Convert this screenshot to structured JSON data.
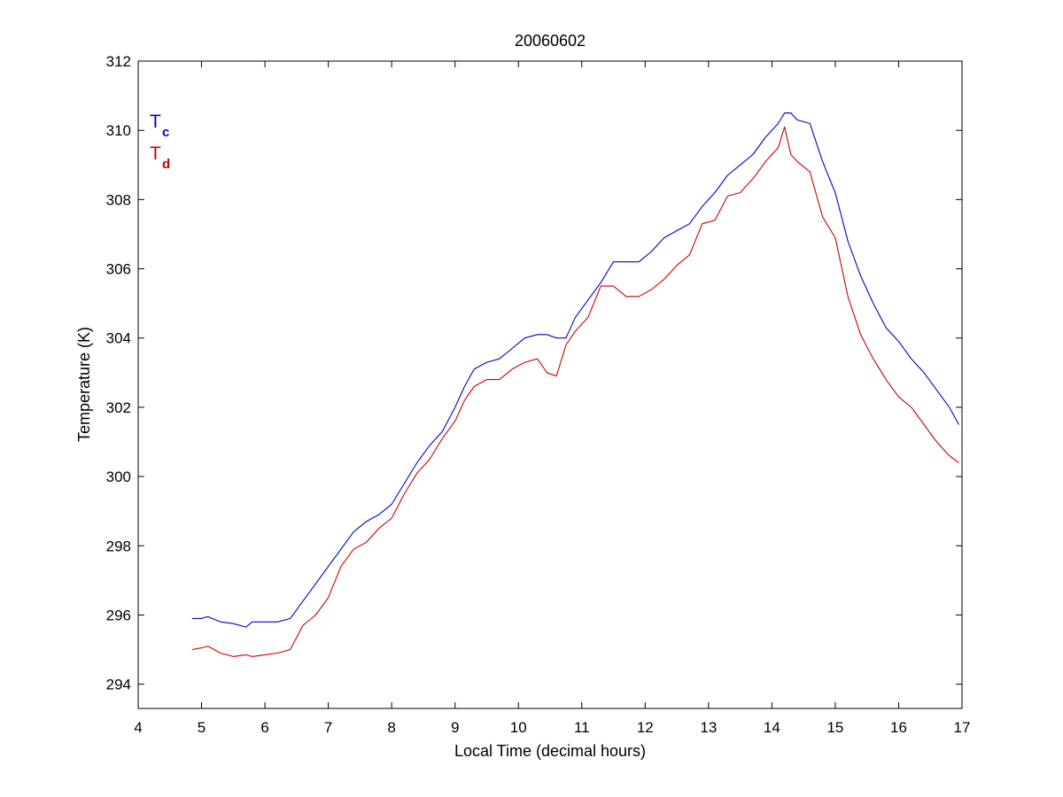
{
  "chart_data": {
    "type": "line",
    "title": "20060602",
    "xlabel": "Local Time (decimal hours)",
    "ylabel": "Temperature (K)",
    "xlim": [
      4,
      17
    ],
    "ylim": [
      293.3,
      312
    ],
    "xticks": [
      4,
      5,
      6,
      7,
      8,
      9,
      10,
      11,
      12,
      13,
      14,
      15,
      16,
      17
    ],
    "yticks": [
      294,
      296,
      298,
      300,
      302,
      304,
      306,
      308,
      310,
      312
    ],
    "grid": false,
    "legend_position": "top-left",
    "series": [
      {
        "name": "Tc",
        "legend_main": "T",
        "legend_sub": "c",
        "color": "#0000c8",
        "x": [
          4.85,
          5.0,
          5.1,
          5.3,
          5.5,
          5.7,
          5.8,
          6.0,
          6.2,
          6.4,
          6.6,
          6.8,
          7.0,
          7.2,
          7.4,
          7.6,
          7.8,
          8.0,
          8.2,
          8.4,
          8.6,
          8.8,
          9.0,
          9.15,
          9.3,
          9.5,
          9.7,
          9.9,
          10.1,
          10.3,
          10.45,
          10.6,
          10.75,
          10.9,
          11.1,
          11.3,
          11.5,
          11.7,
          11.9,
          12.1,
          12.3,
          12.5,
          12.7,
          12.9,
          13.1,
          13.3,
          13.5,
          13.7,
          13.9,
          14.1,
          14.2,
          14.3,
          14.4,
          14.6,
          14.8,
          15.0,
          15.2,
          15.4,
          15.6,
          15.8,
          16.0,
          16.2,
          16.4,
          16.6,
          16.8,
          16.95
        ],
        "values": [
          295.9,
          295.9,
          295.95,
          295.8,
          295.75,
          295.65,
          295.8,
          295.8,
          295.8,
          295.9,
          296.4,
          296.9,
          297.4,
          297.9,
          298.4,
          298.7,
          298.9,
          299.2,
          299.8,
          300.4,
          300.9,
          301.3,
          302.0,
          302.6,
          303.1,
          303.3,
          303.4,
          303.7,
          304.0,
          304.1,
          304.1,
          304.0,
          304.0,
          304.6,
          305.1,
          305.6,
          306.2,
          306.2,
          306.2,
          306.5,
          306.9,
          307.1,
          307.3,
          307.8,
          308.2,
          308.7,
          309.0,
          309.3,
          309.8,
          310.2,
          310.5,
          310.5,
          310.3,
          310.2,
          309.1,
          308.2,
          306.8,
          305.8,
          305.0,
          304.3,
          303.9,
          303.4,
          303.0,
          302.5,
          302.0,
          301.5
        ]
      },
      {
        "name": "Td",
        "legend_main": "T",
        "legend_sub": "d",
        "color": "#cc0000",
        "x": [
          4.85,
          5.0,
          5.1,
          5.3,
          5.5,
          5.7,
          5.8,
          6.0,
          6.2,
          6.4,
          6.6,
          6.8,
          7.0,
          7.2,
          7.4,
          7.6,
          7.8,
          8.0,
          8.2,
          8.4,
          8.6,
          8.8,
          9.0,
          9.15,
          9.3,
          9.5,
          9.7,
          9.9,
          10.1,
          10.3,
          10.45,
          10.6,
          10.75,
          10.9,
          11.1,
          11.3,
          11.5,
          11.7,
          11.9,
          12.1,
          12.3,
          12.5,
          12.7,
          12.9,
          13.1,
          13.3,
          13.5,
          13.7,
          13.9,
          14.1,
          14.2,
          14.3,
          14.4,
          14.6,
          14.8,
          15.0,
          15.2,
          15.4,
          15.6,
          15.8,
          16.0,
          16.2,
          16.4,
          16.6,
          16.8,
          16.95
        ],
        "values": [
          295.0,
          295.05,
          295.1,
          294.9,
          294.8,
          294.85,
          294.8,
          294.85,
          294.9,
          295.0,
          295.7,
          296.0,
          296.5,
          297.4,
          297.9,
          298.1,
          298.5,
          298.8,
          299.5,
          300.1,
          300.5,
          301.1,
          301.6,
          302.2,
          302.6,
          302.8,
          302.8,
          303.1,
          303.3,
          303.4,
          303.0,
          302.9,
          303.8,
          304.2,
          304.6,
          305.5,
          305.5,
          305.2,
          305.2,
          305.4,
          305.7,
          306.1,
          306.4,
          307.3,
          307.4,
          308.1,
          308.2,
          308.6,
          309.1,
          309.5,
          310.1,
          309.3,
          309.1,
          308.8,
          307.5,
          306.9,
          305.2,
          304.1,
          303.4,
          302.8,
          302.3,
          302.0,
          301.5,
          301.0,
          300.6,
          300.4
        ]
      }
    ]
  }
}
